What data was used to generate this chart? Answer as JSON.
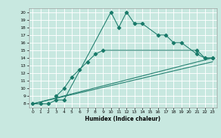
{
  "xlabel": "Humidex (Indice chaleur)",
  "ylabel": "",
  "xlim": [
    -0.5,
    23.5
  ],
  "ylim": [
    7.5,
    20.5
  ],
  "xticks": [
    0,
    1,
    2,
    3,
    4,
    5,
    6,
    7,
    8,
    9,
    10,
    11,
    12,
    13,
    14,
    15,
    16,
    17,
    18,
    19,
    20,
    21,
    22,
    23
  ],
  "yticks": [
    8,
    9,
    10,
    11,
    12,
    13,
    14,
    15,
    16,
    17,
    18,
    19,
    20
  ],
  "bg_color": "#c8e8e0",
  "line_color": "#1a7a6a",
  "grid_color": "#ffffff",
  "line1_x": [
    0,
    1,
    2,
    3,
    4,
    10,
    11,
    12,
    13,
    14,
    16,
    17,
    18,
    19,
    21,
    22,
    23
  ],
  "line1_y": [
    8,
    8,
    8,
    8.5,
    8.5,
    20,
    18,
    20,
    18.5,
    18.5,
    17,
    17,
    16,
    16,
    14.5,
    14,
    14
  ],
  "line2_x": [
    3,
    4,
    5,
    6,
    7,
    8,
    9,
    21,
    22,
    23
  ],
  "line2_y": [
    9,
    10,
    11.5,
    12.5,
    13.5,
    14.5,
    15,
    15,
    14,
    14
  ],
  "line3_x": [
    0,
    23
  ],
  "line3_y": [
    8,
    14
  ],
  "line4_x": [
    0,
    23
  ],
  "line4_y": [
    8,
    13.5
  ]
}
